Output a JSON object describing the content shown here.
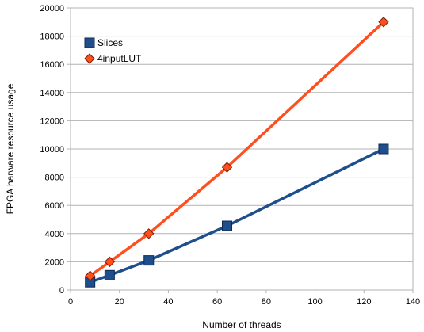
{
  "chart_data": {
    "type": "line",
    "title": "",
    "xlabel": "Number of threads",
    "ylabel": "FPGA harware resource usage",
    "xlim": [
      0,
      140
    ],
    "ylim": [
      0,
      20000
    ],
    "xticks": [
      0,
      20,
      40,
      60,
      80,
      100,
      120,
      140
    ],
    "yticks": [
      0,
      2000,
      4000,
      6000,
      8000,
      10000,
      12000,
      14000,
      16000,
      18000,
      20000
    ],
    "grid": "horizontal",
    "legend_position": "top-left",
    "x": [
      8,
      16,
      32,
      64,
      128
    ],
    "series": [
      {
        "name": "Slices",
        "values": [
          550,
          1050,
          2100,
          4550,
          10000
        ],
        "color": "#1f4e8c",
        "marker": "square"
      },
      {
        "name": "4inputLUT",
        "values": [
          1000,
          2000,
          4000,
          8700,
          19000
        ],
        "color": "#ff4f1f",
        "marker": "diamond"
      }
    ]
  }
}
